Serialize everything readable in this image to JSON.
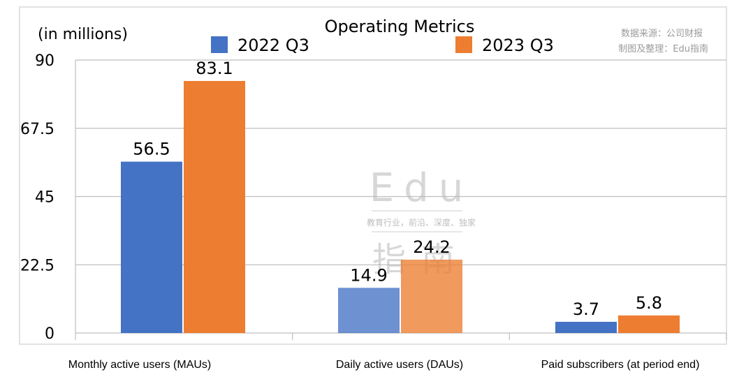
{
  "chart_data": {
    "type": "bar",
    "title": "Operating Metrics",
    "unit_label": "(in millions)",
    "categories": [
      "Monthly active users (MAUs)",
      "Daily active users (DAUs)",
      "Paid subscribers (at period end)"
    ],
    "series": [
      {
        "name": "2022 Q3",
        "values": [
          56.5,
          14.9,
          3.7
        ],
        "color": "#4472C4"
      },
      {
        "name": "2023 Q3",
        "values": [
          83.1,
          24.2,
          5.8
        ],
        "color": "#ED7D31"
      }
    ],
    "y_ticks": [
      "0",
      "22.5",
      "45",
      "67.5",
      "90"
    ],
    "ylim": [
      0,
      90
    ],
    "grid": true,
    "legend_position": "top"
  },
  "source_note": {
    "line1": "数据来源：公司财报",
    "line2": "制图及整理：Edu指南"
  },
  "watermark": {
    "logo_text": "Edu",
    "tagline": "教育行业，前沿、深度、独家",
    "logo_cn": "指南"
  }
}
